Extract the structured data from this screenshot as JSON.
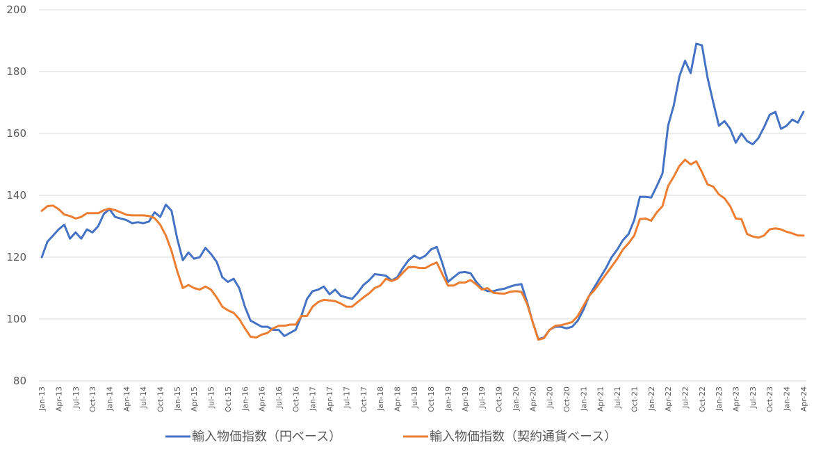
{
  "chart_data": {
    "type": "line",
    "title": "",
    "xlabel": "",
    "ylabel": "",
    "ylim": [
      80,
      200
    ],
    "yticks": [
      80,
      100,
      120,
      140,
      160,
      180,
      200
    ],
    "grid": true,
    "legend_position": "bottom",
    "x_start": "Jan-13",
    "x_end": "Apr-24",
    "xtick_labels": [
      "Jan-13",
      "Apr-13",
      "Jul-13",
      "Oct-13",
      "Jan-14",
      "Apr-14",
      "Jul-14",
      "Oct-14",
      "Jan-15",
      "Apr-15",
      "Jul-15",
      "Oct-15",
      "Jan-16",
      "Apr-16",
      "Jul-16",
      "Oct-16",
      "Jan-17",
      "Apr-17",
      "Jul-17",
      "Oct-17",
      "Jan-18",
      "Apr-18",
      "Jul-18",
      "Oct-18",
      "Jan-19",
      "Apr-19",
      "Jul-19",
      "Oct-19",
      "Jan-20",
      "Apr-20",
      "Jul-20",
      "Oct-20",
      "Jan-21",
      "Apr-21",
      "Jul-21",
      "Oct-21",
      "Jan-22",
      "Apr-22",
      "Jul-22",
      "Oct-22",
      "Jan-23",
      "Apr-23",
      "Jul-23",
      "Oct-23",
      "Jan-24",
      "Apr-24"
    ],
    "series": [
      {
        "name": "輸入物価指数（円ベース）",
        "color": "#4472c4",
        "values": [
          120.0,
          125.0,
          127.0,
          129.0,
          130.5,
          126.0,
          128.0,
          126.0,
          129.0,
          128.0,
          130.0,
          134.0,
          135.5,
          133.0,
          132.5,
          132.0,
          131.0,
          131.3,
          131.0,
          131.5,
          134.5,
          133.0,
          137.0,
          135.0,
          126.0,
          119.0,
          121.5,
          119.5,
          120.0,
          123.0,
          121.0,
          118.5,
          113.5,
          112.0,
          113.0,
          110.0,
          104.0,
          99.5,
          98.5,
          97.5,
          97.5,
          96.5,
          96.5,
          94.5,
          95.5,
          96.5,
          101.0,
          106.5,
          109.0,
          109.5,
          110.5,
          108.0,
          109.5,
          107.5,
          107.0,
          106.5,
          108.5,
          111.0,
          112.5,
          114.5,
          114.3,
          114.0,
          112.5,
          113.5,
          116.5,
          119.0,
          120.5,
          119.5,
          120.5,
          122.5,
          123.3,
          118.0,
          112.0,
          113.5,
          115.0,
          115.2,
          114.8,
          112.0,
          110.0,
          109.0,
          109.0,
          109.5,
          109.8,
          110.5,
          111.0,
          111.3,
          105.5,
          99.0,
          93.5,
          94.0,
          96.5,
          97.5,
          97.5,
          97.0,
          97.5,
          99.5,
          103.0,
          107.5,
          110.5,
          113.5,
          116.5,
          120.0,
          122.5,
          125.5,
          127.5,
          132.0,
          139.5,
          139.5,
          139.3,
          143.0,
          147.0,
          162.5,
          169.0,
          178.5,
          183.5,
          179.5,
          189.0,
          188.5,
          178.0,
          170.0,
          162.5,
          164.0,
          161.5,
          157.0,
          160.0,
          157.5,
          156.5,
          158.5,
          162.0,
          166.0,
          167.0,
          161.5,
          162.5,
          164.5,
          163.5,
          167.0
        ]
      },
      {
        "name": "輸入物価指数（契約通貨ベース）",
        "color": "#ed7d31",
        "values": [
          135.0,
          136.5,
          136.7,
          135.5,
          133.8,
          133.3,
          132.5,
          133.0,
          134.2,
          134.2,
          134.2,
          135.2,
          135.7,
          135.2,
          134.5,
          133.7,
          133.5,
          133.5,
          133.5,
          133.3,
          132.6,
          130.5,
          127.0,
          122.0,
          115.5,
          110.0,
          111.0,
          110.0,
          109.5,
          110.5,
          109.5,
          107.0,
          104.0,
          102.8,
          102.0,
          100.0,
          97.0,
          94.3,
          94.0,
          95.0,
          95.5,
          97.0,
          97.8,
          97.8,
          98.2,
          98.2,
          101.0,
          101.0,
          104.0,
          105.5,
          106.2,
          106.0,
          105.8,
          105.0,
          104.0,
          104.0,
          105.5,
          107.0,
          108.3,
          110.0,
          110.8,
          113.0,
          112.3,
          113.0,
          115.0,
          116.8,
          116.8,
          116.5,
          116.5,
          117.5,
          118.3,
          114.5,
          110.8,
          110.8,
          111.8,
          111.8,
          112.6,
          111.2,
          109.5,
          110.0,
          108.5,
          108.3,
          108.2,
          108.8,
          109.0,
          108.8,
          105.0,
          99.0,
          93.3,
          93.8,
          96.5,
          97.8,
          98.0,
          98.5,
          99.0,
          101.0,
          104.3,
          107.5,
          109.5,
          112.0,
          114.5,
          117.0,
          119.5,
          122.5,
          124.5,
          127.0,
          132.3,
          132.5,
          131.8,
          134.5,
          136.5,
          143.0,
          146.0,
          149.5,
          151.5,
          150.0,
          151.0,
          147.5,
          143.5,
          142.8,
          140.3,
          139.0,
          136.5,
          132.5,
          132.3,
          127.5,
          126.7,
          126.3,
          127.0,
          129.0,
          129.3,
          129.0,
          128.2,
          127.7,
          127.0,
          127.0
        ]
      }
    ]
  }
}
